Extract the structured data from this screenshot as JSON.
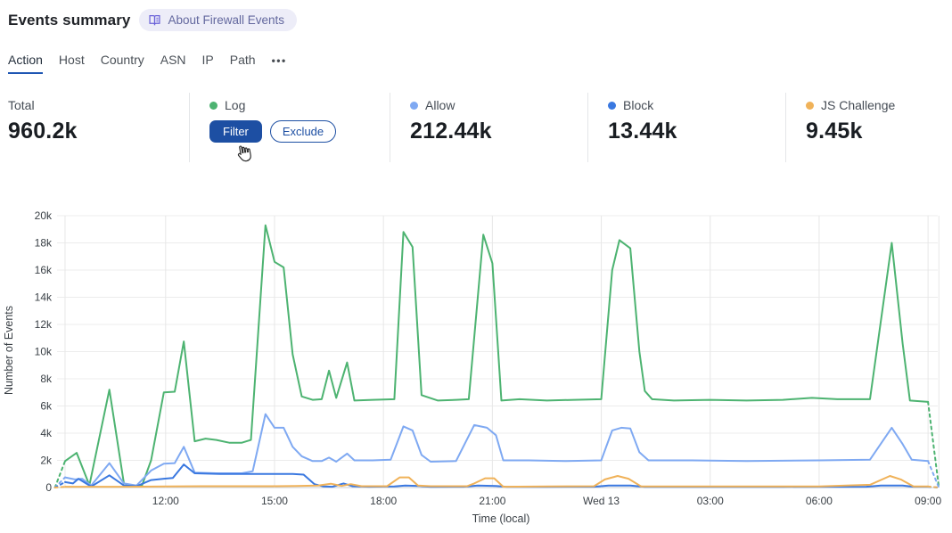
{
  "header": {
    "title": "Events summary",
    "about_label": "About Firewall Events"
  },
  "tabs": {
    "items": [
      {
        "label": "Action",
        "active": true
      },
      {
        "label": "Host"
      },
      {
        "label": "Country"
      },
      {
        "label": "ASN"
      },
      {
        "label": "IP"
      },
      {
        "label": "Path"
      }
    ],
    "more_label": "•••"
  },
  "stats": {
    "total": {
      "label": "Total",
      "value": "960.2k"
    },
    "log": {
      "label": "Log",
      "color": "#4db371",
      "filter_label": "Filter",
      "exclude_label": "Exclude"
    },
    "allow": {
      "label": "Allow",
      "value": "212.44k",
      "color": "#7fa9f2"
    },
    "block": {
      "label": "Block",
      "value": "13.44k",
      "color": "#3a78e0"
    },
    "js_challenge": {
      "label": "JS Challenge",
      "value": "9.45k",
      "color": "#f0b259"
    }
  },
  "chart_data": {
    "type": "line",
    "xlabel": "Time (local)",
    "ylabel": "Number of Events",
    "ylim": [
      0,
      20
    ],
    "y_value_unit": "thousands",
    "x_unit": "hours since 09:00 (previous day)",
    "grid": true,
    "legend_position": "stats-row-above",
    "x_ticks": [
      {
        "t": 3,
        "label": "12:00"
      },
      {
        "t": 6,
        "label": "15:00"
      },
      {
        "t": 9,
        "label": "18:00"
      },
      {
        "t": 12,
        "label": "21:00"
      },
      {
        "t": 15,
        "label": "Wed 13"
      },
      {
        "t": 18,
        "label": "03:00"
      },
      {
        "t": 21,
        "label": "06:00"
      },
      {
        "t": 24,
        "label": "09:00"
      }
    ],
    "y_ticks": [
      {
        "v": 0,
        "label": "0"
      },
      {
        "v": 2,
        "label": "2k"
      },
      {
        "v": 4,
        "label": "4k"
      },
      {
        "v": 6,
        "label": "6k"
      },
      {
        "v": 8,
        "label": "8k"
      },
      {
        "v": 10,
        "label": "10k"
      },
      {
        "v": 12,
        "label": "12k"
      },
      {
        "v": 14,
        "label": "14k"
      },
      {
        "v": 16,
        "label": "16k"
      },
      {
        "v": 18,
        "label": "18k"
      },
      {
        "v": 20,
        "label": "20k"
      }
    ],
    "x_boundaries": [
      0.23,
      24.3
    ],
    "series": [
      {
        "name": "Log",
        "color": "#4db371",
        "dash_start": [
          [
            -0.05,
            0
          ],
          [
            0.23,
            1.95
          ]
        ],
        "points": [
          [
            0.23,
            1.95
          ],
          [
            0.55,
            2.55
          ],
          [
            0.9,
            0.17
          ],
          [
            1.45,
            7.2
          ],
          [
            1.85,
            0.3
          ],
          [
            2.1,
            0.15
          ],
          [
            2.35,
            0.15
          ],
          [
            2.6,
            2.0
          ],
          [
            2.95,
            7.0
          ],
          [
            3.25,
            7.05
          ],
          [
            3.5,
            10.75
          ],
          [
            3.8,
            3.4
          ],
          [
            4.1,
            3.6
          ],
          [
            4.4,
            3.5
          ],
          [
            4.75,
            3.3
          ],
          [
            5.1,
            3.3
          ],
          [
            5.35,
            3.5
          ],
          [
            5.75,
            19.3
          ],
          [
            6.0,
            16.6
          ],
          [
            6.25,
            16.2
          ],
          [
            6.5,
            9.8
          ],
          [
            6.75,
            6.7
          ],
          [
            7.05,
            6.45
          ],
          [
            7.3,
            6.5
          ],
          [
            7.5,
            8.6
          ],
          [
            7.7,
            6.6
          ],
          [
            8.0,
            9.2
          ],
          [
            8.2,
            6.4
          ],
          [
            8.7,
            6.45
          ],
          [
            9.3,
            6.5
          ],
          [
            9.55,
            18.8
          ],
          [
            9.8,
            17.7
          ],
          [
            10.05,
            6.8
          ],
          [
            10.5,
            6.4
          ],
          [
            11.0,
            6.45
          ],
          [
            11.35,
            6.5
          ],
          [
            11.75,
            18.6
          ],
          [
            12.0,
            16.5
          ],
          [
            12.25,
            6.4
          ],
          [
            12.75,
            6.5
          ],
          [
            13.5,
            6.4
          ],
          [
            14.25,
            6.45
          ],
          [
            15.0,
            6.5
          ],
          [
            15.3,
            16.0
          ],
          [
            15.5,
            18.2
          ],
          [
            15.8,
            17.6
          ],
          [
            16.05,
            10.0
          ],
          [
            16.2,
            7.1
          ],
          [
            16.4,
            6.5
          ],
          [
            17.0,
            6.4
          ],
          [
            18.0,
            6.45
          ],
          [
            19.0,
            6.4
          ],
          [
            20.0,
            6.45
          ],
          [
            20.8,
            6.6
          ],
          [
            21.5,
            6.5
          ],
          [
            22.4,
            6.5
          ],
          [
            23.0,
            18.0
          ],
          [
            23.3,
            10.6
          ],
          [
            23.5,
            6.4
          ],
          [
            24.0,
            6.3
          ]
        ],
        "dash_end": [
          [
            24.0,
            6.3
          ],
          [
            24.3,
            0
          ]
        ]
      },
      {
        "name": "Allow",
        "color": "#7fa9f2",
        "dash_start": [
          [
            -0.05,
            0
          ],
          [
            0.23,
            0.75
          ]
        ],
        "points": [
          [
            0.23,
            0.75
          ],
          [
            0.5,
            0.6
          ],
          [
            0.7,
            0.65
          ],
          [
            0.95,
            0.15
          ],
          [
            1.45,
            1.8
          ],
          [
            1.85,
            0.3
          ],
          [
            2.2,
            0.15
          ],
          [
            2.6,
            1.25
          ],
          [
            2.95,
            1.75
          ],
          [
            3.25,
            1.8
          ],
          [
            3.5,
            3.0
          ],
          [
            3.8,
            1.1
          ],
          [
            4.4,
            1.05
          ],
          [
            5.1,
            1.05
          ],
          [
            5.4,
            1.2
          ],
          [
            5.75,
            5.4
          ],
          [
            6.0,
            4.4
          ],
          [
            6.25,
            4.4
          ],
          [
            6.5,
            3.0
          ],
          [
            6.75,
            2.3
          ],
          [
            7.05,
            1.95
          ],
          [
            7.3,
            1.95
          ],
          [
            7.5,
            2.2
          ],
          [
            7.7,
            1.9
          ],
          [
            8.0,
            2.5
          ],
          [
            8.2,
            2.0
          ],
          [
            8.7,
            2.0
          ],
          [
            9.2,
            2.05
          ],
          [
            9.55,
            4.5
          ],
          [
            9.8,
            4.2
          ],
          [
            10.05,
            2.4
          ],
          [
            10.3,
            1.9
          ],
          [
            11.0,
            1.95
          ],
          [
            11.5,
            4.6
          ],
          [
            11.85,
            4.4
          ],
          [
            12.1,
            3.85
          ],
          [
            12.3,
            2.0
          ],
          [
            13.0,
            2.0
          ],
          [
            14.0,
            1.95
          ],
          [
            15.0,
            2.0
          ],
          [
            15.3,
            4.2
          ],
          [
            15.55,
            4.4
          ],
          [
            15.8,
            4.35
          ],
          [
            16.05,
            2.6
          ],
          [
            16.3,
            2.0
          ],
          [
            17.5,
            2.0
          ],
          [
            19.0,
            1.95
          ],
          [
            21.0,
            2.0
          ],
          [
            22.4,
            2.05
          ],
          [
            23.0,
            4.4
          ],
          [
            23.3,
            3.2
          ],
          [
            23.55,
            2.05
          ],
          [
            24.0,
            1.95
          ]
        ],
        "dash_end": [
          [
            24.0,
            1.95
          ],
          [
            24.3,
            0
          ]
        ]
      },
      {
        "name": "Block",
        "color": "#3a78e0",
        "dash_start": [
          [
            -0.05,
            0
          ],
          [
            0.23,
            0.4
          ]
        ],
        "points": [
          [
            0.23,
            0.4
          ],
          [
            0.45,
            0.3
          ],
          [
            0.6,
            0.65
          ],
          [
            0.95,
            0.07
          ],
          [
            1.45,
            0.9
          ],
          [
            1.85,
            0.15
          ],
          [
            2.2,
            0.1
          ],
          [
            2.6,
            0.55
          ],
          [
            2.95,
            0.65
          ],
          [
            3.2,
            0.7
          ],
          [
            3.5,
            1.7
          ],
          [
            3.8,
            1.05
          ],
          [
            4.5,
            1.0
          ],
          [
            5.5,
            1.0
          ],
          [
            6.5,
            1.0
          ],
          [
            6.8,
            0.95
          ],
          [
            7.1,
            0.25
          ],
          [
            7.35,
            0.08
          ],
          [
            7.6,
            0.06
          ],
          [
            7.9,
            0.3
          ],
          [
            8.15,
            0.1
          ],
          [
            8.6,
            0.06
          ],
          [
            9.3,
            0.08
          ],
          [
            9.6,
            0.15
          ],
          [
            10.0,
            0.12
          ],
          [
            10.3,
            0.05
          ],
          [
            11.2,
            0.06
          ],
          [
            11.6,
            0.15
          ],
          [
            12.1,
            0.12
          ],
          [
            12.4,
            0.05
          ],
          [
            13.5,
            0.05
          ],
          [
            14.8,
            0.06
          ],
          [
            15.2,
            0.15
          ],
          [
            15.8,
            0.15
          ],
          [
            16.2,
            0.05
          ],
          [
            18.0,
            0.05
          ],
          [
            20.0,
            0.05
          ],
          [
            22.3,
            0.06
          ],
          [
            22.7,
            0.15
          ],
          [
            23.3,
            0.15
          ],
          [
            23.6,
            0.06
          ],
          [
            24.0,
            0.06
          ]
        ],
        "dash_end": [
          [
            24.0,
            0.06
          ],
          [
            24.3,
            0
          ]
        ]
      },
      {
        "name": "JS Challenge",
        "color": "#f0b259",
        "dash_start": [
          [
            -0.05,
            0
          ],
          [
            0.23,
            0.06
          ]
        ],
        "points": [
          [
            0.23,
            0.06
          ],
          [
            1.0,
            0.06
          ],
          [
            2.0,
            0.06
          ],
          [
            3.0,
            0.08
          ],
          [
            4.0,
            0.1
          ],
          [
            5.0,
            0.1
          ],
          [
            6.0,
            0.1
          ],
          [
            6.6,
            0.12
          ],
          [
            7.2,
            0.15
          ],
          [
            7.55,
            0.28
          ],
          [
            7.85,
            0.12
          ],
          [
            8.1,
            0.25
          ],
          [
            8.4,
            0.1
          ],
          [
            9.1,
            0.1
          ],
          [
            9.45,
            0.75
          ],
          [
            9.7,
            0.75
          ],
          [
            9.95,
            0.15
          ],
          [
            10.3,
            0.1
          ],
          [
            11.3,
            0.1
          ],
          [
            11.5,
            0.3
          ],
          [
            11.8,
            0.68
          ],
          [
            12.05,
            0.68
          ],
          [
            12.3,
            0.06
          ],
          [
            13.5,
            0.08
          ],
          [
            14.8,
            0.1
          ],
          [
            15.1,
            0.6
          ],
          [
            15.45,
            0.85
          ],
          [
            15.75,
            0.65
          ],
          [
            16.1,
            0.08
          ],
          [
            17.0,
            0.08
          ],
          [
            19.0,
            0.08
          ],
          [
            21.0,
            0.08
          ],
          [
            22.4,
            0.2
          ],
          [
            22.95,
            0.85
          ],
          [
            23.25,
            0.6
          ],
          [
            23.6,
            0.08
          ],
          [
            24.0,
            0.08
          ]
        ],
        "dash_end": [
          [
            24.0,
            0.08
          ],
          [
            24.3,
            0
          ]
        ]
      }
    ]
  }
}
